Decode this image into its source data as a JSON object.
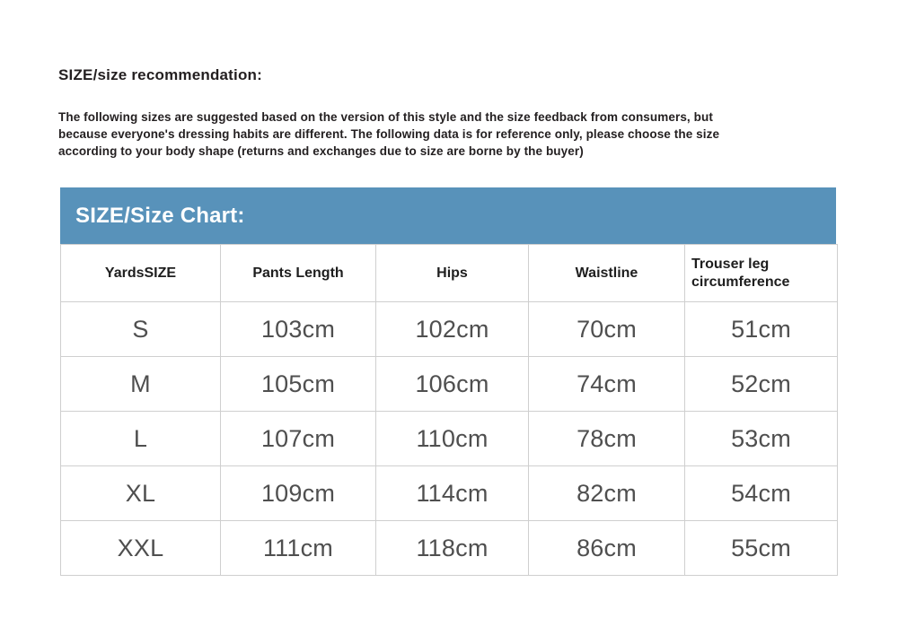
{
  "colors": {
    "banner_bg": "#5892ba",
    "banner_text": "#ffffff",
    "border": "#cfcfcf",
    "heading_text": "#231f20",
    "header_cell_text": "#1e1e1e",
    "cell_text": "#4f4f4f",
    "page_bg": "#ffffff"
  },
  "intro": {
    "heading": "SIZE/size recommendation:",
    "lines": [
      "The following sizes are suggested based on the version of this style and the size feedback from consumers, but",
      "because everyone's dressing habits are different. The following data is for reference only, please choose the size",
      "according to your body shape (returns and exchanges due to size are borne by the buyer)"
    ]
  },
  "banner": {
    "title": "SIZE/Size Chart:"
  },
  "table": {
    "columns": [
      "YardsSIZE",
      "Pants Length",
      "Hips",
      "Waistline",
      "Trouser leg circumference"
    ],
    "rows": [
      [
        "S",
        "103cm",
        "102cm",
        "70cm",
        "51cm"
      ],
      [
        "M",
        "105cm",
        "106cm",
        "74cm",
        "52cm"
      ],
      [
        "L",
        "107cm",
        "110cm",
        "78cm",
        "53cm"
      ],
      [
        "XL",
        "109cm",
        "114cm",
        "82cm",
        "54cm"
      ],
      [
        "XXL",
        "111cm",
        "118cm",
        "86cm",
        "55cm"
      ]
    ]
  }
}
